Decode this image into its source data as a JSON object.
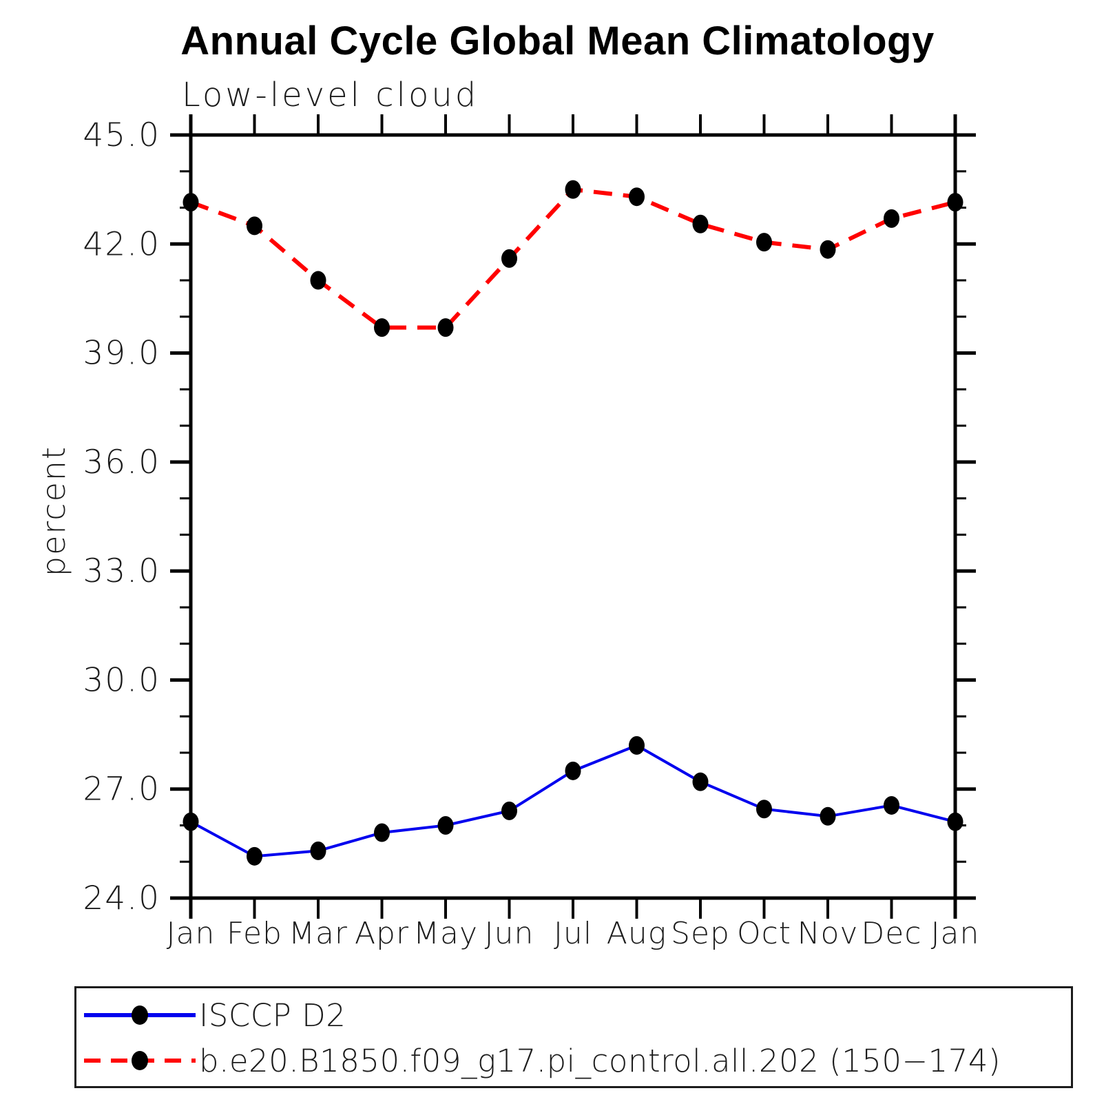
{
  "title": "Annual Cycle Global Mean Climatology",
  "subtitle": "Low-level cloud",
  "legend": {
    "items": [
      {
        "label": "ISCCP D2",
        "color": "#0000ee",
        "style": "solid",
        "marker": "filled-circle"
      },
      {
        "label": "b.e20.B1850.f09_g17.pi_control.all.202 (150−174)",
        "color": "#ff0000",
        "style": "dashed",
        "marker": "filled-circle"
      }
    ]
  },
  "chart_data": {
    "type": "line",
    "title": "Annual Cycle Global Mean Climatology",
    "subtitle": "Low-level cloud",
    "xlabel": "",
    "ylabel": "percent",
    "categories": [
      "Jan",
      "Feb",
      "Mar",
      "Apr",
      "May",
      "Jun",
      "Jul",
      "Aug",
      "Sep",
      "Oct",
      "Nov",
      "Dec",
      "Jan"
    ],
    "ylim": [
      24.0,
      45.0
    ],
    "ytick_major_interval": 3.0,
    "ytick_minor_interval": 1.0,
    "ytick_labels": [
      "24.0",
      "27.0",
      "30.0",
      "33.0",
      "36.0",
      "39.0",
      "42.0",
      "45.0"
    ],
    "grid": false,
    "legend_position": "bottom",
    "marker_color": "#000000",
    "axis_color": "#000000",
    "series": [
      {
        "name": "ISCCP D2",
        "color": "#0000ee",
        "line_style": "solid",
        "values": [
          26.1,
          25.15,
          25.3,
          25.8,
          26.0,
          26.4,
          27.5,
          28.2,
          27.2,
          26.45,
          26.25,
          26.55,
          26.1
        ]
      },
      {
        "name": "b.e20.B1850.f09_g17.pi_control.all.202 (150−174)",
        "color": "#ff0000",
        "line_style": "dashed",
        "values": [
          43.15,
          42.5,
          41.0,
          39.7,
          39.7,
          41.6,
          43.5,
          43.3,
          42.55,
          42.05,
          41.85,
          42.7,
          43.15
        ]
      }
    ]
  }
}
